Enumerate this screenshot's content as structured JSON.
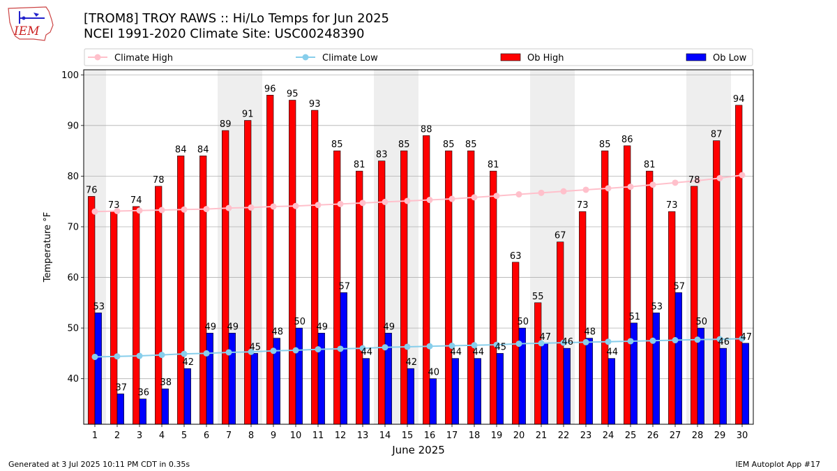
{
  "logo": {
    "text": "IEM"
  },
  "header": {
    "title_line1": "[TROM8] TROY RAWS :: Hi/Lo Temps for Jun 2025",
    "title_line2": "NCEI 1991-2020 Climate Site: USC00248390"
  },
  "footer": {
    "generated": "Generated at 3 Jul 2025 10:11 PM CDT in 0.35s",
    "app": "IEM Autoplot App #17"
  },
  "colors": {
    "ob_high": "#ff0000",
    "ob_low": "#0000ff",
    "climate_high": "#ffc0cb",
    "climate_low": "#87ceeb",
    "weekend_band": "#eeeeee",
    "grid": "#b0b0b0"
  },
  "chart_data": {
    "type": "bar",
    "xlabel": "June 2025",
    "ylabel": "Temperature °F",
    "ylim": [
      31,
      101
    ],
    "yticks": [
      40,
      50,
      60,
      70,
      80,
      90,
      100
    ],
    "grid": "horizontal",
    "legend_placement": "top",
    "weekend_days": [
      1,
      7,
      8,
      14,
      15,
      21,
      22,
      28,
      29
    ],
    "categories": [
      "1",
      "2",
      "3",
      "4",
      "5",
      "6",
      "7",
      "8",
      "9",
      "10",
      "11",
      "12",
      "13",
      "14",
      "15",
      "16",
      "17",
      "18",
      "19",
      "20",
      "21",
      "22",
      "23",
      "24",
      "25",
      "26",
      "27",
      "28",
      "29",
      "30"
    ],
    "series": [
      {
        "name": "Ob High",
        "kind": "bar",
        "values": [
          76,
          73,
          74,
          78,
          84,
          84,
          89,
          91,
          96,
          95,
          93,
          85,
          81,
          83,
          85,
          88,
          85,
          85,
          81,
          63,
          55,
          67,
          73,
          85,
          86,
          81,
          73,
          78,
          87,
          94
        ]
      },
      {
        "name": "Ob Low",
        "kind": "bar",
        "values": [
          53,
          37,
          36,
          38,
          42,
          49,
          49,
          45,
          48,
          50,
          49,
          57,
          44,
          49,
          42,
          40,
          44,
          44,
          45,
          50,
          47,
          46,
          48,
          44,
          51,
          53,
          57,
          50,
          46,
          47
        ]
      },
      {
        "name": "Climate High",
        "kind": "line",
        "values": [
          73.0,
          73.1,
          73.2,
          73.3,
          73.4,
          73.5,
          73.7,
          73.8,
          74.0,
          74.1,
          74.3,
          74.5,
          74.7,
          74.9,
          75.1,
          75.3,
          75.5,
          75.8,
          76.1,
          76.4,
          76.7,
          77.0,
          77.3,
          77.6,
          77.9,
          78.3,
          78.7,
          79.1,
          79.6,
          80.2
        ]
      },
      {
        "name": "Climate Low",
        "kind": "line",
        "values": [
          44.3,
          44.4,
          44.5,
          44.7,
          44.9,
          45.0,
          45.2,
          45.3,
          45.5,
          45.6,
          45.8,
          45.9,
          46.0,
          46.2,
          46.3,
          46.4,
          46.5,
          46.6,
          46.7,
          46.9,
          47.0,
          47.1,
          47.2,
          47.3,
          47.4,
          47.5,
          47.6,
          47.7,
          47.8,
          47.9
        ]
      }
    ]
  }
}
